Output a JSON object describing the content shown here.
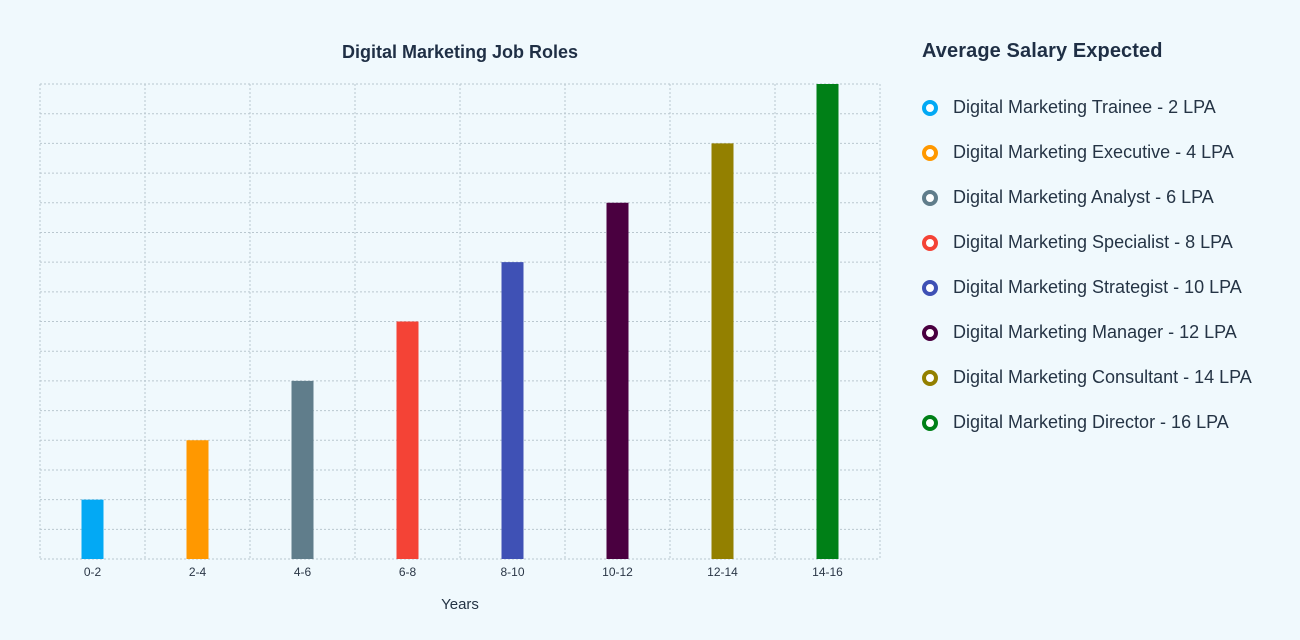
{
  "chart_data": {
    "type": "bar",
    "title": "Digital Marketing Job Roles",
    "xlabel": "Years",
    "ylabel": "",
    "categories": [
      "0-2",
      "2-4",
      "4-6",
      "6-8",
      "8-10",
      "10-12",
      "12-14",
      "14-16"
    ],
    "values": [
      2,
      4,
      6,
      8,
      10,
      12,
      14,
      16
    ],
    "colors": [
      "#03a9f4",
      "#ff9800",
      "#607d8b",
      "#f44336",
      "#3f51b5",
      "#4a0040",
      "#938000",
      "#008017"
    ],
    "ylim": [
      0,
      16
    ],
    "grid": true,
    "legend_position": "right"
  },
  "legend": {
    "title": "Average Salary Expected",
    "items": [
      {
        "label": "Digital Marketing Trainee - 2 LPA",
        "color": "#03a9f4"
      },
      {
        "label": "Digital Marketing Executive - 4 LPA",
        "color": "#ff9800"
      },
      {
        "label": "Digital Marketing Analyst - 6 LPA",
        "color": "#607d8b"
      },
      {
        "label": "Digital Marketing Specialist - 8 LPA",
        "color": "#f44336"
      },
      {
        "label": "Digital Marketing Strategist - 10 LPA",
        "color": "#3f51b5"
      },
      {
        "label": "Digital Marketing Manager - 12 LPA",
        "color": "#4a0040"
      },
      {
        "label": "Digital Marketing Consultant - 14 LPA",
        "color": "#938000"
      },
      {
        "label": "Digital Marketing Director - 16 LPA",
        "color": "#008017"
      }
    ]
  }
}
